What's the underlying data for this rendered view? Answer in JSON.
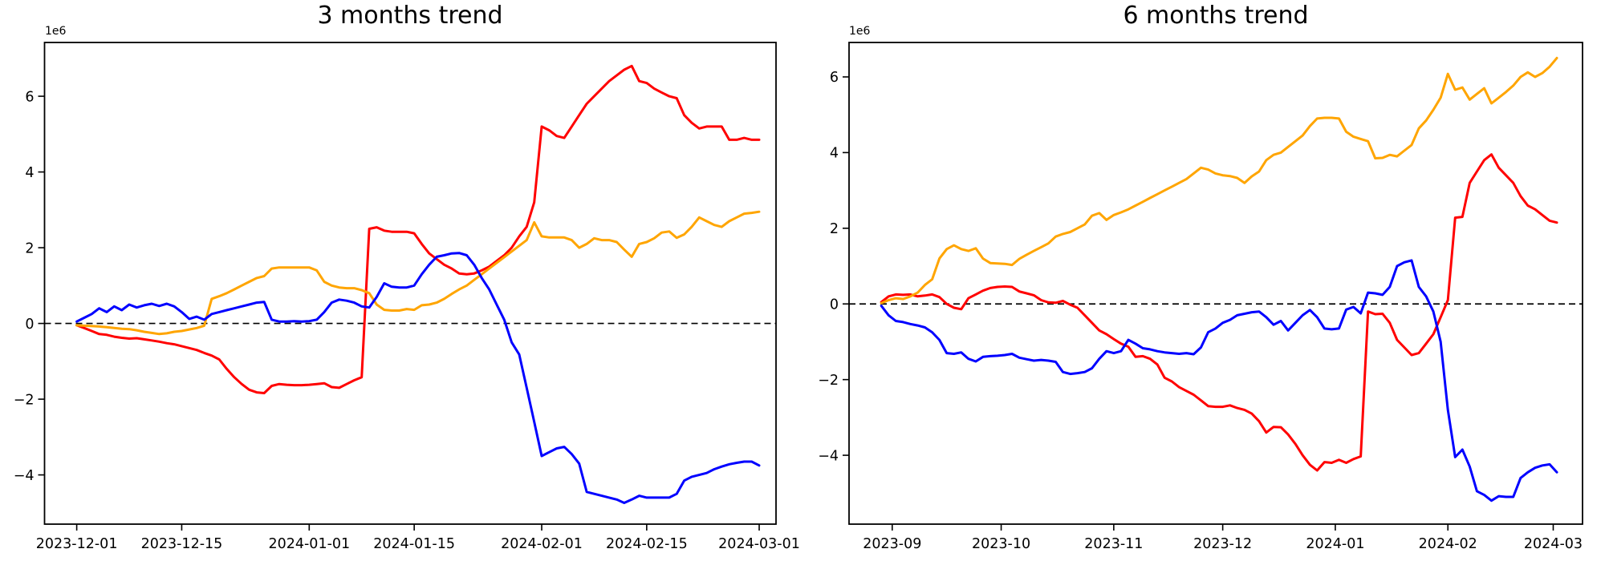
{
  "figure": {
    "background": "#ffffff",
    "axis_color": "#000000",
    "zero_line_color": "#000000"
  },
  "chart_data": [
    {
      "type": "line",
      "title": "3 months trend",
      "y_offset_label": "1e6",
      "xlabel": "",
      "ylabel": "",
      "grid": false,
      "legend": false,
      "zero_line_dashed": true,
      "x_tick_labels": [
        "2023-12-01",
        "2023-12-15",
        "2024-01-01",
        "2024-01-15",
        "2024-02-01",
        "2024-02-15",
        "2024-03-01"
      ],
      "x_tick_days": [
        0,
        14,
        31,
        45,
        62,
        76,
        91
      ],
      "x_day_max": 91,
      "x_step": 1,
      "ylim": [
        -5.3,
        7.42
      ],
      "y_tick_values": [
        6,
        4,
        2,
        0,
        -2,
        -4
      ],
      "y_tick_labels": [
        "6",
        "4",
        "2",
        "0",
        "−2",
        "−4"
      ],
      "series": [
        {
          "name": "red",
          "color": "#ff0000",
          "values": [
            -0.05,
            -0.12,
            -0.2,
            -0.28,
            -0.3,
            -0.35,
            -0.38,
            -0.4,
            -0.39,
            -0.42,
            -0.45,
            -0.48,
            -0.52,
            -0.55,
            -0.6,
            -0.65,
            -0.7,
            -0.78,
            -0.85,
            -0.95,
            -1.2,
            -1.42,
            -1.6,
            -1.75,
            -1.82,
            -1.84,
            -1.65,
            -1.6,
            -1.62,
            -1.63,
            -1.63,
            -1.62,
            -1.6,
            -1.58,
            -1.68,
            -1.7,
            -1.6,
            -1.5,
            -1.42,
            2.5,
            2.54,
            2.45,
            2.42,
            2.42,
            2.42,
            2.38,
            2.1,
            1.85,
            1.7,
            1.55,
            1.45,
            1.32,
            1.3,
            1.32,
            1.4,
            1.5,
            1.65,
            1.8,
            2.0,
            2.3,
            2.55,
            3.2,
            5.2,
            5.1,
            4.95,
            4.9,
            5.2,
            5.5,
            5.8,
            6.0,
            6.2,
            6.4,
            6.55,
            6.7,
            6.8,
            6.4,
            6.35,
            6.2,
            6.1,
            6.0,
            5.95,
            5.5,
            5.3,
            5.15,
            5.2,
            5.2,
            5.2,
            4.85,
            4.85,
            4.9,
            4.85,
            4.85
          ]
        },
        {
          "name": "orange",
          "color": "#ffa500",
          "values": [
            -0.05,
            -0.06,
            -0.07,
            -0.08,
            -0.1,
            -0.12,
            -0.14,
            -0.15,
            -0.18,
            -0.22,
            -0.25,
            -0.28,
            -0.26,
            -0.22,
            -0.2,
            -0.16,
            -0.12,
            -0.06,
            0.65,
            0.72,
            0.8,
            0.9,
            1.0,
            1.1,
            1.2,
            1.25,
            1.45,
            1.48,
            1.48,
            1.48,
            1.48,
            1.48,
            1.4,
            1.1,
            1.0,
            0.95,
            0.93,
            0.93,
            0.88,
            0.8,
            0.5,
            0.36,
            0.34,
            0.34,
            0.38,
            0.36,
            0.48,
            0.5,
            0.55,
            0.65,
            0.78,
            0.9,
            1.0,
            1.15,
            1.3,
            1.45,
            1.6,
            1.75,
            1.9,
            2.05,
            2.2,
            2.67,
            2.3,
            2.27,
            2.27,
            2.27,
            2.2,
            2.0,
            2.1,
            2.25,
            2.2,
            2.2,
            2.15,
            1.95,
            1.76,
            2.1,
            2.15,
            2.25,
            2.4,
            2.43,
            2.26,
            2.35,
            2.55,
            2.8,
            2.7,
            2.6,
            2.55,
            2.7,
            2.8,
            2.9,
            2.92,
            2.95
          ]
        },
        {
          "name": "blue",
          "color": "#0000ff",
          "values": [
            0.05,
            0.15,
            0.25,
            0.4,
            0.3,
            0.45,
            0.35,
            0.5,
            0.42,
            0.48,
            0.52,
            0.46,
            0.52,
            0.45,
            0.3,
            0.12,
            0.18,
            0.1,
            0.25,
            0.3,
            0.35,
            0.4,
            0.45,
            0.5,
            0.55,
            0.57,
            0.1,
            0.05,
            0.05,
            0.06,
            0.05,
            0.06,
            0.1,
            0.3,
            0.55,
            0.63,
            0.6,
            0.55,
            0.45,
            0.42,
            0.7,
            1.06,
            0.97,
            0.95,
            0.95,
            1.0,
            1.3,
            1.55,
            1.76,
            1.8,
            1.85,
            1.86,
            1.8,
            1.55,
            1.2,
            0.9,
            0.5,
            0.1,
            -0.5,
            -0.82,
            -1.7,
            -2.6,
            -3.5,
            -3.4,
            -3.3,
            -3.26,
            -3.45,
            -3.7,
            -4.45,
            -4.5,
            -4.55,
            -4.6,
            -4.65,
            -4.74,
            -4.65,
            -4.55,
            -4.6,
            -4.6,
            -4.6,
            -4.6,
            -4.5,
            -4.15,
            -4.05,
            -4.0,
            -3.95,
            -3.85,
            -3.78,
            -3.72,
            -3.68,
            -3.65,
            -3.65,
            -3.75
          ]
        }
      ]
    },
    {
      "type": "line",
      "title": "6 months trend",
      "y_offset_label": "1e6",
      "xlabel": "",
      "ylabel": "",
      "grid": false,
      "legend": false,
      "zero_line_dashed": true,
      "x_tick_labels": [
        "2023-09",
        "2023-10",
        "2023-11",
        "2023-12",
        "2024-01",
        "2024-02",
        "2024-03"
      ],
      "x_tick_days": [
        3,
        33,
        64,
        94,
        125,
        156,
        185
      ],
      "x_day_max": 186,
      "x_step": 2,
      "ylim": [
        -5.82,
        6.91
      ],
      "y_tick_values": [
        6,
        4,
        2,
        0,
        -2,
        -4
      ],
      "y_tick_labels": [
        "6",
        "4",
        "2",
        "0",
        "−2",
        "−4"
      ],
      "series": [
        {
          "name": "red",
          "color": "#ff0000",
          "values": [
            0.05,
            0.2,
            0.25,
            0.24,
            0.25,
            0.2,
            0.22,
            0.25,
            0.18,
            0.0,
            -0.1,
            -0.14,
            0.15,
            0.25,
            0.35,
            0.42,
            0.45,
            0.46,
            0.45,
            0.33,
            0.28,
            0.23,
            0.1,
            0.04,
            0.03,
            0.08,
            -0.02,
            -0.1,
            -0.3,
            -0.5,
            -0.7,
            -0.8,
            -0.93,
            -1.05,
            -1.13,
            -1.4,
            -1.38,
            -1.45,
            -1.6,
            -1.95,
            -2.05,
            -2.2,
            -2.3,
            -2.4,
            -2.55,
            -2.7,
            -2.72,
            -2.72,
            -2.68,
            -2.75,
            -2.8,
            -2.9,
            -3.1,
            -3.4,
            -3.25,
            -3.26,
            -3.45,
            -3.7,
            -4.0,
            -4.25,
            -4.4,
            -4.18,
            -4.2,
            -4.12,
            -4.2,
            -4.1,
            -4.03,
            -0.2,
            -0.27,
            -0.26,
            -0.5,
            -0.95,
            -1.15,
            -1.35,
            -1.3,
            -1.05,
            -0.8,
            -0.35,
            0.1,
            2.28,
            2.3,
            3.2,
            3.5,
            3.8,
            3.95,
            3.6,
            3.4,
            3.2,
            2.85,
            2.6,
            2.5,
            2.35,
            2.2,
            2.15
          ]
        },
        {
          "name": "orange",
          "color": "#ffa500",
          "values": [
            0.02,
            0.1,
            0.15,
            0.13,
            0.2,
            0.3,
            0.5,
            0.65,
            1.2,
            1.45,
            1.55,
            1.45,
            1.4,
            1.47,
            1.2,
            1.08,
            1.07,
            1.06,
            1.03,
            1.19,
            1.3,
            1.4,
            1.5,
            1.6,
            1.78,
            1.85,
            1.9,
            2.0,
            2.1,
            2.33,
            2.4,
            2.22,
            2.35,
            2.42,
            2.5,
            2.6,
            2.7,
            2.8,
            2.9,
            3.0,
            3.1,
            3.2,
            3.3,
            3.45,
            3.6,
            3.55,
            3.45,
            3.4,
            3.38,
            3.33,
            3.2,
            3.37,
            3.5,
            3.8,
            3.94,
            4.0,
            4.15,
            4.3,
            4.45,
            4.7,
            4.9,
            4.92,
            4.92,
            4.9,
            4.55,
            4.42,
            4.36,
            4.3,
            3.85,
            3.86,
            3.94,
            3.9,
            4.05,
            4.2,
            4.64,
            4.85,
            5.13,
            5.45,
            6.08,
            5.66,
            5.72,
            5.4,
            5.55,
            5.7,
            5.3,
            5.45,
            5.6,
            5.77,
            6.0,
            6.12,
            6.0,
            6.1,
            6.27,
            6.5
          ]
        },
        {
          "name": "blue",
          "color": "#0000ff",
          "values": [
            -0.05,
            -0.3,
            -0.45,
            -0.48,
            -0.53,
            -0.57,
            -0.62,
            -0.75,
            -0.95,
            -1.3,
            -1.32,
            -1.28,
            -1.45,
            -1.52,
            -1.4,
            -1.38,
            -1.37,
            -1.35,
            -1.32,
            -1.42,
            -1.46,
            -1.5,
            -1.48,
            -1.5,
            -1.53,
            -1.8,
            -1.85,
            -1.83,
            -1.8,
            -1.7,
            -1.45,
            -1.25,
            -1.3,
            -1.25,
            -0.95,
            -1.05,
            -1.17,
            -1.2,
            -1.25,
            -1.28,
            -1.3,
            -1.32,
            -1.3,
            -1.33,
            -1.15,
            -0.75,
            -0.65,
            -0.5,
            -0.42,
            -0.3,
            -0.26,
            -0.22,
            -0.2,
            -0.35,
            -0.55,
            -0.45,
            -0.7,
            -0.5,
            -0.3,
            -0.16,
            -0.35,
            -0.65,
            -0.67,
            -0.65,
            -0.15,
            -0.08,
            -0.25,
            0.3,
            0.28,
            0.24,
            0.45,
            1.0,
            1.1,
            1.15,
            0.45,
            0.2,
            -0.2,
            -1.0,
            -2.8,
            -4.05,
            -3.85,
            -4.3,
            -4.95,
            -5.05,
            -5.2,
            -5.08,
            -5.1,
            -5.1,
            -4.6,
            -4.45,
            -4.33,
            -4.27,
            -4.24,
            -4.45
          ]
        }
      ]
    }
  ]
}
